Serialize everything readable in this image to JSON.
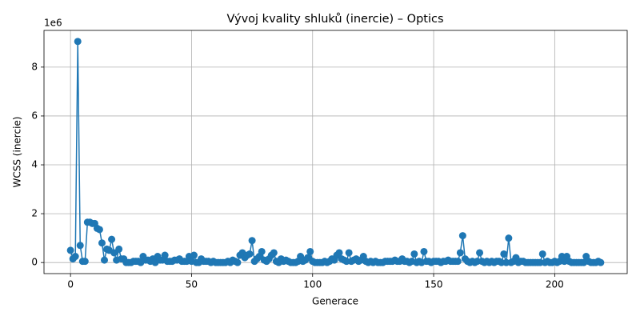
{
  "chart_data": {
    "type": "line",
    "title": "Vývoj kvality shluků (inercie) – Optics",
    "x_label": "Generace",
    "y_label": "WCSS (inercie)",
    "y_offset_label": "1e6",
    "xlim": [
      -10.95,
      229.95
    ],
    "ylim": [
      -0.4525,
      9.5025
    ],
    "xticks": [
      0,
      50,
      100,
      150,
      200
    ],
    "yticks": [
      0,
      2,
      4,
      6,
      8
    ],
    "grid": true,
    "x": [
      0,
      1,
      2,
      3,
      4,
      5,
      6,
      7,
      8,
      9,
      10,
      11,
      12,
      13,
      14,
      15,
      16,
      17,
      18,
      19,
      20,
      21,
      22,
      23,
      24,
      25,
      26,
      27,
      28,
      29,
      30,
      31,
      32,
      33,
      34,
      35,
      36,
      37,
      38,
      39,
      40,
      41,
      42,
      43,
      44,
      45,
      46,
      47,
      48,
      49,
      50,
      51,
      52,
      53,
      54,
      55,
      56,
      57,
      58,
      59,
      60,
      61,
      62,
      63,
      64,
      65,
      66,
      67,
      68,
      69,
      70,
      71,
      72,
      73,
      74,
      75,
      76,
      77,
      78,
      79,
      80,
      81,
      82,
      83,
      84,
      85,
      86,
      87,
      88,
      89,
      90,
      91,
      92,
      93,
      94,
      95,
      96,
      97,
      98,
      99,
      100,
      101,
      102,
      103,
      104,
      105,
      106,
      107,
      108,
      109,
      110,
      111,
      112,
      113,
      114,
      115,
      116,
      117,
      118,
      119,
      120,
      121,
      122,
      123,
      124,
      125,
      126,
      127,
      128,
      129,
      130,
      131,
      132,
      133,
      134,
      135,
      136,
      137,
      138,
      139,
      140,
      141,
      142,
      143,
      144,
      145,
      146,
      147,
      148,
      149,
      150,
      151,
      152,
      153,
      154,
      155,
      156,
      157,
      158,
      159,
      160,
      161,
      162,
      163,
      164,
      165,
      166,
      167,
      168,
      169,
      170,
      171,
      172,
      173,
      174,
      175,
      176,
      177,
      178,
      179,
      180,
      181,
      182,
      183,
      184,
      185,
      186,
      187,
      188,
      189,
      190,
      191,
      192,
      193,
      194,
      195,
      196,
      197,
      198,
      199,
      200,
      201,
      202,
      203,
      204,
      205,
      206,
      207,
      208,
      209,
      210,
      211,
      212,
      213,
      214,
      215,
      216,
      217,
      218,
      219
    ],
    "series": [
      {
        "color": "#1f77b4",
        "values": [
          0.5,
          0.15,
          0.25,
          9.05,
          0.7,
          0.05,
          0.05,
          1.65,
          1.65,
          1.6,
          1.6,
          1.4,
          1.35,
          0.8,
          0.1,
          0.55,
          0.5,
          0.95,
          0.4,
          0.1,
          0.55,
          0.15,
          0.15,
          0.0,
          0.0,
          0.0,
          0.05,
          0.05,
          0.05,
          0.0,
          0.25,
          0.1,
          0.1,
          0.05,
          0.15,
          0.0,
          0.25,
          0.1,
          0.1,
          0.3,
          0.05,
          0.05,
          0.05,
          0.1,
          0.1,
          0.15,
          0.05,
          0.05,
          0.05,
          0.25,
          0.05,
          0.3,
          0.0,
          0.0,
          0.15,
          0.05,
          0.05,
          0.05,
          0.0,
          0.05,
          0.0,
          0.0,
          0.0,
          0.0,
          0.0,
          0.05,
          0.0,
          0.1,
          0.05,
          0.0,
          0.3,
          0.4,
          0.2,
          0.3,
          0.35,
          0.9,
          0.05,
          0.15,
          0.25,
          0.45,
          0.1,
          0.05,
          0.15,
          0.3,
          0.4,
          0.05,
          0.0,
          0.15,
          0.05,
          0.1,
          0.05,
          0.0,
          0.0,
          0.0,
          0.05,
          0.25,
          0.05,
          0.1,
          0.2,
          0.45,
          0.05,
          0.0,
          0.0,
          0.0,
          0.0,
          0.05,
          0.0,
          0.05,
          0.15,
          0.1,
          0.3,
          0.4,
          0.15,
          0.1,
          0.05,
          0.4,
          0.05,
          0.1,
          0.15,
          0.05,
          0.1,
          0.25,
          0.05,
          0.0,
          0.05,
          0.0,
          0.05,
          0.0,
          0.0,
          0.0,
          0.05,
          0.05,
          0.05,
          0.05,
          0.1,
          0.05,
          0.05,
          0.15,
          0.05,
          0.05,
          0.0,
          0.05,
          0.35,
          0.0,
          0.05,
          0.0,
          0.45,
          0.05,
          0.05,
          0.0,
          0.05,
          0.05,
          0.05,
          0.0,
          0.05,
          0.05,
          0.1,
          0.05,
          0.05,
          0.05,
          0.05,
          0.4,
          1.1,
          0.15,
          0.05,
          0.0,
          0.05,
          0.0,
          0.05,
          0.4,
          0.05,
          0.0,
          0.05,
          0.0,
          0.05,
          0.0,
          0.05,
          0.05,
          0.0,
          0.35,
          0.0,
          1.0,
          0.0,
          0.05,
          0.2,
          0.0,
          0.05,
          0.05,
          0.0,
          0.0,
          0.0,
          0.0,
          0.0,
          0.0,
          0.0,
          0.35,
          0.0,
          0.05,
          0.0,
          0.0,
          0.05,
          0.0,
          0.05,
          0.25,
          0.05,
          0.25,
          0.05,
          0.0,
          0.0,
          0.0,
          0.0,
          0.0,
          0.0,
          0.25,
          0.05,
          0.0,
          0.0,
          0.0,
          0.05,
          0.0
        ]
      }
    ]
  }
}
